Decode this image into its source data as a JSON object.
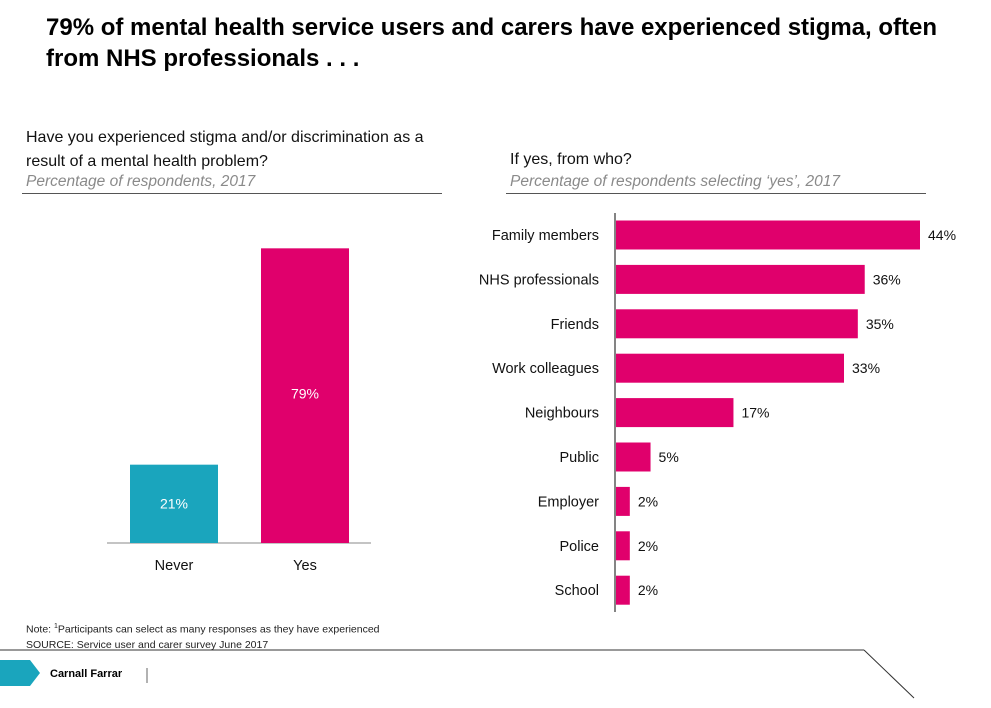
{
  "title": "79% of mental health service users and carers have experienced stigma, often from NHS professionals . . .",
  "left_panel": {
    "question_line1": "Have you experienced stigma and/or discrimination as a",
    "question_line2": "result of a mental health problem?",
    "subtitle": "Percentage of respondents, 2017"
  },
  "right_panel": {
    "question": "If yes, from who?",
    "subtitle": "Percentage of respondents selecting ‘yes’, 2017"
  },
  "chart_data": [
    {
      "type": "bar",
      "categories": [
        "Never",
        "Yes"
      ],
      "values": [
        21,
        79
      ],
      "value_labels": [
        "21%",
        "79%"
      ],
      "colors": [
        "#1aa5bd",
        "#e0006c"
      ],
      "ylim": [
        0,
        100
      ]
    },
    {
      "type": "bar",
      "orientation": "horizontal",
      "categories": [
        "Family members",
        "NHS professionals",
        "Friends",
        "Work colleagues",
        "Neighbours",
        "Public",
        "Employer",
        "Police",
        "School"
      ],
      "values": [
        44,
        36,
        35,
        33,
        17,
        5,
        2,
        2,
        2
      ],
      "value_labels": [
        "44%",
        "36%",
        "35%",
        "33%",
        "17%",
        "5%",
        "2%",
        "2%",
        "2%"
      ],
      "color": "#e0006c",
      "xlim": [
        0,
        44
      ]
    }
  ],
  "footer": {
    "note_prefix": "Note: ",
    "note_superscript": "1",
    "note_text": "Participants can select as many responses as they have experienced",
    "source": "SOURCE: Service user and carer survey June 2017",
    "brand": "Carnall Farrar"
  },
  "colors": {
    "accent_teal": "#1aa5bd",
    "accent_magenta": "#e0006c"
  }
}
